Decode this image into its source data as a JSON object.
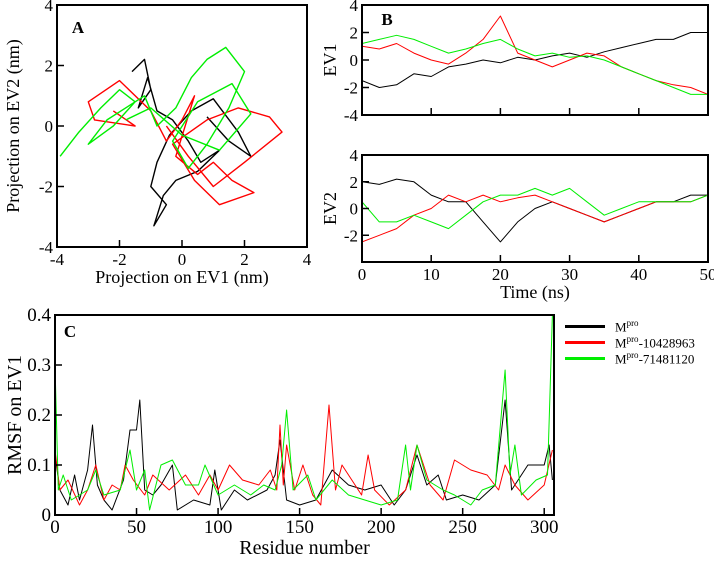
{
  "colors": {
    "Mpro": "#000000",
    "Mpro-10428963": "#ff0000",
    "Mpro-71481120": "#00ee00"
  },
  "legend": {
    "items": [
      {
        "base": "M",
        "sup": "pro",
        "suffix": "",
        "color": "#000000"
      },
      {
        "base": "M",
        "sup": "pro",
        "suffix": "-10428963",
        "color": "#ff0000"
      },
      {
        "base": "M",
        "sup": "pro",
        "suffix": "-71481120",
        "color": "#00ee00"
      }
    ]
  },
  "chart_data": [
    {
      "panel": "A",
      "type": "line",
      "xlabel": "Projection on EV1 (nm)",
      "ylabel": "Projection on EV2 (nm)",
      "xlim": [
        -4,
        4
      ],
      "ylim": [
        -4,
        4
      ],
      "xticks": [
        "-4",
        "-2",
        "0",
        "2",
        "4"
      ],
      "yticks": [
        "-4",
        "-2",
        "0",
        "2",
        "4"
      ],
      "series": [
        {
          "name": "Mpro",
          "color": "#000000",
          "x": [
            -1.6,
            -1.2,
            -1.0,
            -1.4,
            -1.1,
            -0.8,
            -0.3,
            0.2,
            0.6,
            1.2,
            0.5,
            -0.2,
            -0.6,
            -0.9,
            -0.5,
            -1.0,
            -0.8,
            -0.4,
            0.3,
            1.0,
            1.8,
            2.2,
            1.5,
            0.8
          ],
          "y": [
            1.8,
            2.2,
            1.2,
            0.6,
            1.6,
            0.5,
            0.2,
            -0.5,
            -1.2,
            -0.8,
            -1.5,
            -1.8,
            -2.3,
            -3.3,
            -2.6,
            -2.0,
            -1.2,
            -0.3,
            0.5,
            0.9,
            -0.2,
            -1.0,
            -0.5,
            0.3
          ]
        },
        {
          "name": "Mpro-10428963",
          "color": "#ff0000",
          "x": [
            -2.2,
            -1.5,
            -2.8,
            -3.0,
            -2.0,
            -1.0,
            -0.5,
            0.0,
            0.4,
            -0.2,
            0.5,
            1.0,
            1.6,
            2.3,
            1.2,
            0.4,
            -0.3,
            0.8,
            1.8,
            2.8,
            3.2,
            2.0,
            1.0,
            0.2,
            -0.5
          ],
          "y": [
            0.5,
            0.0,
            0.2,
            0.8,
            1.5,
            0.5,
            -0.5,
            0.2,
            1.0,
            -1.0,
            -1.6,
            -1.2,
            -1.8,
            -2.2,
            -2.6,
            -1.8,
            -0.6,
            0.2,
            0.6,
            0.3,
            -0.2,
            -1.2,
            -2.0,
            -1.0,
            0.0
          ]
        },
        {
          "name": "Mpro-71481120",
          "color": "#00ee00",
          "x": [
            -3.9,
            -3.3,
            -2.6,
            -2.0,
            -1.5,
            -2.2,
            -3.0,
            -2.4,
            -1.2,
            -0.8,
            -0.2,
            0.3,
            0.8,
            1.4,
            2.0,
            1.5,
            0.8,
            0.2,
            -0.3,
            0.5,
            1.6,
            2.2,
            1.2,
            0.0,
            -1.0,
            -1.8
          ],
          "y": [
            -1.0,
            -0.2,
            0.6,
            1.2,
            0.8,
            0.0,
            -0.6,
            0.2,
            1.0,
            0.0,
            0.6,
            1.6,
            2.2,
            2.6,
            1.8,
            0.6,
            -0.6,
            -1.4,
            -0.5,
            0.8,
            1.4,
            0.4,
            -0.8,
            -0.3,
            0.6,
            0.2
          ]
        }
      ]
    },
    {
      "panel": "B",
      "type": "line",
      "ylabel": "EV1",
      "xlim": [
        0,
        50
      ],
      "ylim": [
        -4,
        4
      ],
      "yticks": [
        "-4",
        "-2",
        "0",
        "2",
        "4"
      ],
      "x": [
        0,
        2.5,
        5,
        7.5,
        10,
        12.5,
        15,
        17.5,
        20,
        22.5,
        25,
        27.5,
        30,
        32.5,
        35,
        37.5,
        40,
        42.5,
        45,
        47.5,
        50
      ],
      "series": [
        {
          "name": "Mpro",
          "color": "#000000",
          "values": [
            -1.5,
            -2,
            -1.8,
            -1,
            -1.2,
            -0.5,
            -0.3,
            0,
            -0.2,
            0.2,
            0,
            0.3,
            0.5,
            0.2,
            0.6,
            0.9,
            1.2,
            1.5,
            1.5,
            2,
            2
          ]
        },
        {
          "name": "Mpro-10428963",
          "color": "#ff0000",
          "values": [
            1,
            0.8,
            1.2,
            0.5,
            0,
            -0.3,
            0.5,
            1.5,
            3.2,
            0.5,
            0,
            -0.5,
            0,
            0.5,
            0.3,
            -0.5,
            -1,
            -1.5,
            -1.8,
            -2,
            -2.5
          ]
        },
        {
          "name": "Mpro-71481120",
          "color": "#00ee00",
          "values": [
            1.2,
            1.5,
            1.8,
            1.5,
            1,
            0.5,
            0.8,
            1.2,
            1.5,
            0.8,
            0.3,
            0.5,
            0.2,
            0.3,
            0,
            -0.5,
            -1,
            -1.5,
            -2,
            -2.5,
            -2.5
          ]
        }
      ]
    },
    {
      "panel": "B",
      "type": "line",
      "ylabel": "EV2",
      "xlabel": "Time (ns)",
      "xlim": [
        0,
        50
      ],
      "ylim": [
        -4,
        4
      ],
      "xticks": [
        "0",
        "10",
        "20",
        "30",
        "40",
        "50"
      ],
      "yticks": [
        "-2",
        "0",
        "2",
        "4"
      ],
      "x": [
        0,
        2.5,
        5,
        7.5,
        10,
        12.5,
        15,
        17.5,
        20,
        22.5,
        25,
        27.5,
        30,
        32.5,
        35,
        37.5,
        40,
        42.5,
        45,
        47.5,
        50
      ],
      "series": [
        {
          "name": "Mpro",
          "color": "#000000",
          "values": [
            2,
            1.8,
            2.2,
            2,
            1,
            0.5,
            0.5,
            -1,
            -2.5,
            -1,
            0,
            0.5,
            0,
            -0.5,
            -1,
            -0.5,
            0,
            0.5,
            0.5,
            1,
            1
          ]
        },
        {
          "name": "Mpro-10428963",
          "color": "#ff0000",
          "values": [
            -2.5,
            -2,
            -1.5,
            -0.5,
            0,
            1,
            0.5,
            1,
            0.5,
            0.8,
            1,
            0.5,
            0,
            -0.5,
            -1,
            -0.5,
            0,
            0.5,
            0.5,
            0.5,
            1
          ]
        },
        {
          "name": "Mpro-71481120",
          "color": "#00ee00",
          "values": [
            0.5,
            -1,
            -1,
            -0.5,
            -1,
            -1.5,
            -0.5,
            0.5,
            1,
            1,
            1.5,
            1,
            1.5,
            0.5,
            -0.5,
            0,
            0.5,
            0.5,
            0.5,
            0.5,
            1
          ]
        }
      ]
    },
    {
      "panel": "C",
      "type": "line",
      "xlabel": "Residue number",
      "ylabel": "RMSF on EV1",
      "xlim": [
        0,
        306
      ],
      "ylim": [
        0,
        0.4
      ],
      "xticks": [
        "0",
        "50",
        "100",
        "150",
        "200",
        "250",
        "300"
      ],
      "yticks": [
        "0",
        "0.1",
        "0.2",
        "0.3",
        "0.4"
      ],
      "series": [
        {
          "name": "Mpro",
          "color": "#000000",
          "x": [
            0,
            3,
            8,
            12,
            15,
            20,
            23,
            26,
            30,
            35,
            42,
            46,
            50,
            52,
            55,
            60,
            65,
            72,
            75,
            85,
            95,
            98,
            102,
            110,
            118,
            130,
            135,
            138,
            142,
            150,
            160,
            170,
            180,
            190,
            200,
            208,
            215,
            222,
            228,
            235,
            240,
            250,
            260,
            270,
            276,
            280,
            290,
            300,
            303,
            305
          ],
          "y": [
            0.12,
            0.05,
            0.02,
            0.08,
            0.03,
            0.09,
            0.18,
            0.06,
            0.03,
            0.01,
            0.07,
            0.17,
            0.17,
            0.23,
            0.05,
            0.04,
            0.06,
            0.1,
            0.01,
            0.03,
            0.02,
            0.09,
            0.01,
            0.05,
            0.03,
            0.05,
            0.08,
            0.15,
            0.03,
            0.02,
            0.03,
            0.09,
            0.06,
            0.05,
            0.06,
            0.02,
            0.05,
            0.12,
            0.06,
            0.08,
            0.03,
            0.04,
            0.03,
            0.06,
            0.23,
            0.05,
            0.1,
            0.1,
            0.14,
            0.07
          ]
        },
        {
          "name": "Mpro-10428963",
          "color": "#ff0000",
          "x": [
            0,
            3,
            8,
            15,
            20,
            25,
            30,
            35,
            40,
            43,
            48,
            55,
            60,
            70,
            80,
            88,
            95,
            100,
            107,
            115,
            125,
            132,
            136,
            138,
            140,
            142,
            147,
            152,
            158,
            163,
            168,
            172,
            176,
            182,
            188,
            192,
            196,
            205,
            215,
            222,
            230,
            238,
            245,
            255,
            265,
            272,
            276,
            282,
            290,
            300,
            305
          ],
          "y": [
            0.13,
            0.05,
            0.07,
            0.02,
            0.05,
            0.1,
            0.03,
            0.06,
            0.05,
            0.1,
            0.07,
            0.04,
            0.08,
            0.05,
            0.08,
            0.04,
            0.08,
            0.05,
            0.1,
            0.07,
            0.06,
            0.09,
            0.05,
            0.18,
            0.06,
            0.14,
            0.05,
            0.1,
            0.04,
            0.02,
            0.22,
            0.05,
            0.1,
            0.07,
            0.04,
            0.12,
            0.05,
            0.02,
            0.05,
            0.14,
            0.06,
            0.03,
            0.11,
            0.09,
            0.08,
            0.05,
            0.1,
            0.06,
            0.03,
            0.06,
            0.13
          ]
        },
        {
          "name": "Mpro-71481120",
          "color": "#00ee00",
          "x": [
            0,
            2,
            5,
            10,
            20,
            25,
            30,
            40,
            46,
            50,
            55,
            58,
            65,
            72,
            80,
            88,
            92,
            100,
            110,
            120,
            128,
            135,
            139,
            142,
            146,
            155,
            160,
            170,
            180,
            190,
            200,
            210,
            215,
            218,
            222,
            228,
            238,
            245,
            255,
            262,
            270,
            276,
            279,
            282,
            286,
            295,
            302,
            305
          ],
          "y": [
            0.3,
            0.05,
            0.08,
            0.03,
            0.05,
            0.09,
            0.04,
            0.05,
            0.13,
            0.05,
            0.09,
            0.01,
            0.1,
            0.11,
            0.06,
            0.06,
            0.1,
            0.04,
            0.06,
            0.04,
            0.06,
            0.05,
            0.1,
            0.21,
            0.05,
            0.08,
            0.03,
            0.07,
            0.04,
            0.03,
            0.02,
            0.03,
            0.14,
            0.05,
            0.14,
            0.07,
            0.05,
            0.04,
            0.02,
            0.05,
            0.06,
            0.29,
            0.08,
            0.14,
            0.04,
            0.07,
            0.08,
            0.4
          ]
        }
      ]
    }
  ],
  "panel_labels": [
    "A",
    "B",
    "C"
  ]
}
